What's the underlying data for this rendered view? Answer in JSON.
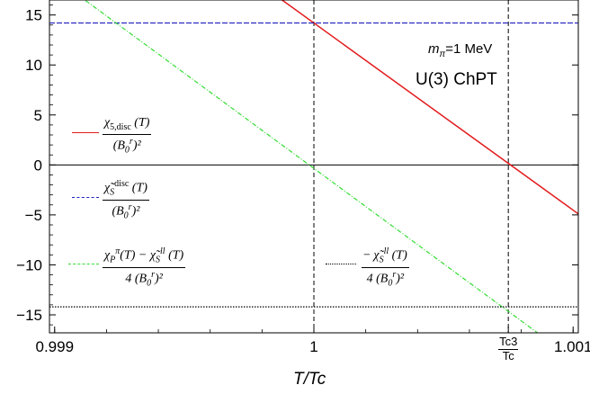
{
  "chart_data": {
    "type": "line",
    "xlabel": "T/Tc",
    "xlim": [
      0.99898,
      1.00102
    ],
    "ylim": [
      -16.8,
      16.5
    ],
    "x_ticks": [
      {
        "value": 0.999,
        "label": "0.999"
      },
      {
        "value": 1.0,
        "label": "1"
      },
      {
        "value": 1.001,
        "label": "1.001"
      }
    ],
    "tc3_tick": {
      "value": 1.00075,
      "numerator": "Tc3",
      "denominator": "Tc"
    },
    "y_ticks": [
      {
        "value": -15,
        "label": "−15"
      },
      {
        "value": -10,
        "label": "−10"
      },
      {
        "value": -5,
        "label": "−5"
      },
      {
        "value": 0,
        "label": "0"
      },
      {
        "value": 5,
        "label": "5"
      },
      {
        "value": 10,
        "label": "10"
      },
      {
        "value": 15,
        "label": "15"
      }
    ],
    "vertical_lines": [
      1.0,
      1.00075
    ],
    "series": [
      {
        "key": "chi5",
        "color": "#e31a1c",
        "style": "solid",
        "x": [
          0.99898,
          1.00102
        ],
        "y": [
          33.3,
          -4.9
        ]
      },
      {
        "key": "chiS_disc",
        "color": "#1f1fbf",
        "style": "dashed",
        "x": [
          0.99898,
          1.00102
        ],
        "y": [
          14.2,
          14.2
        ]
      },
      {
        "key": "chiP_minus_chiS",
        "color": "#33dd33",
        "style": "dashdot",
        "x": [
          0.99898,
          1.00102
        ],
        "y": [
          19.1,
          -19.8
        ]
      },
      {
        "key": "minus_chiS_I",
        "color": "#000000",
        "style": "dotted",
        "x": [
          0.99898,
          1.00102
        ],
        "y": [
          -14.2,
          -14.2
        ]
      }
    ],
    "annotations": {
      "mass": "m",
      "mass_sub": "π",
      "mass_value": "=1 MeV",
      "model": "U(3) ChPT"
    },
    "legend": [
      {
        "key": "chi5",
        "num_main": "χ",
        "num_sub": "5,disc",
        "num_rest": "(T)",
        "den": "(B",
        "den_sub": "0",
        "den_sup": "r",
        "den_rest": ")²"
      },
      {
        "key": "chiS_disc",
        "num_main": "χ̃",
        "num_sub": "S",
        "num_sup": "disc",
        "num_rest": "(T)",
        "den": "(B",
        "den_sub": "0",
        "den_sup": "r",
        "den_rest": ")²"
      },
      {
        "key": "chiP_minus_chiS",
        "num_main": "χ",
        "num_sub": "P",
        "num_sup": "π",
        "num_mid": "(T) − χ̃",
        "num_sub2": "S",
        "num_sup2": "ll",
        "num_rest": "(T)",
        "den": "4 (B",
        "den_sub": "0",
        "den_sup": "r",
        "den_rest": ")²"
      },
      {
        "key": "minus_chiS_I",
        "prefix": "−",
        "num_main": "χ̃",
        "num_sub": "S",
        "num_sup": "ll",
        "num_rest": "(T)",
        "den": "4 (B",
        "den_sub": "0",
        "den_sup": "r",
        "den_rest": ")²"
      }
    ]
  }
}
